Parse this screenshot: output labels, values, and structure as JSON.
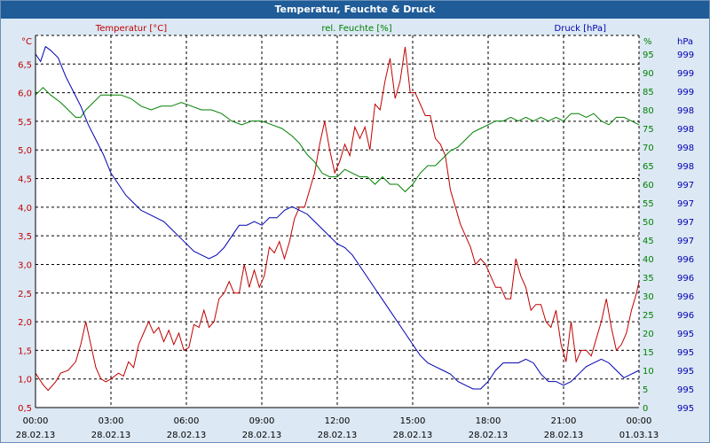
{
  "window": {
    "title": "Temperatur, Feuchte & Druck"
  },
  "colors": {
    "temperature": "#c00000",
    "humidity": "#008000",
    "pressure": "#0000b0",
    "grid": "#000000",
    "titlebar": "#1f5c98"
  },
  "chart_data": {
    "type": "line",
    "title": "Temperatur, Feuchte & Druck",
    "x_unit": "hours since 28.02.13 00:00",
    "xlim": [
      0,
      24
    ],
    "x_ticks": [
      {
        "x": 0,
        "time": "00:00",
        "date": "28.02.13"
      },
      {
        "x": 3,
        "time": "03:00",
        "date": "28.02.13"
      },
      {
        "x": 6,
        "time": "06:00",
        "date": "28.02.13"
      },
      {
        "x": 9,
        "time": "09:00",
        "date": "28.02.13"
      },
      {
        "x": 12,
        "time": "12:00",
        "date": "28.02.13"
      },
      {
        "x": 15,
        "time": "15:00",
        "date": "28.02.13"
      },
      {
        "x": 18,
        "time": "18:00",
        "date": "28.02.13"
      },
      {
        "x": 21,
        "time": "21:00",
        "date": "28.02.13"
      },
      {
        "x": 24,
        "time": "00:00",
        "date": "01.03.13"
      }
    ],
    "axes": {
      "temperature": {
        "label": "Temperatur [°C]",
        "unit": "°C",
        "ylim": [
          0.5,
          7.0
        ],
        "ticks": [
          "0,5",
          "1,0",
          "1,5",
          "2,0",
          "2,5",
          "3,0",
          "3,5",
          "4,0",
          "4,5",
          "5,0",
          "5,5",
          "6,0",
          "6,5"
        ]
      },
      "humidity": {
        "label": "rel. Feuchte [%]",
        "unit": "%",
        "ylim": [
          0,
          100
        ],
        "ticks": [
          "0",
          "5",
          "10",
          "15",
          "20",
          "25",
          "30",
          "35",
          "40",
          "45",
          "50",
          "55",
          "60",
          "65",
          "70",
          "75",
          "80",
          "85",
          "90",
          "95"
        ]
      },
      "pressure": {
        "label": "Druck [hPa]",
        "unit": "hPa",
        "ticks": [
          "995",
          "995",
          "995",
          "995",
          "995",
          "996",
          "996",
          "996",
          "996",
          "997",
          "997",
          "997",
          "997",
          "998",
          "998",
          "998",
          "998",
          "999",
          "999",
          "999"
        ]
      }
    },
    "series": [
      {
        "name": "Temperatur",
        "axis": "temperature",
        "points": [
          [
            0,
            1.1
          ],
          [
            0.3,
            0.9
          ],
          [
            0.5,
            0.8
          ],
          [
            0.8,
            0.95
          ],
          [
            1,
            1.1
          ],
          [
            1.3,
            1.15
          ],
          [
            1.6,
            1.3
          ],
          [
            1.8,
            1.6
          ],
          [
            2,
            2.0
          ],
          [
            2.2,
            1.6
          ],
          [
            2.4,
            1.2
          ],
          [
            2.6,
            1.0
          ],
          [
            2.8,
            0.95
          ],
          [
            3,
            1.0
          ],
          [
            3.3,
            1.1
          ],
          [
            3.5,
            1.05
          ],
          [
            3.7,
            1.3
          ],
          [
            3.9,
            1.2
          ],
          [
            4.1,
            1.6
          ],
          [
            4.3,
            1.8
          ],
          [
            4.5,
            2.0
          ],
          [
            4.7,
            1.8
          ],
          [
            4.9,
            1.9
          ],
          [
            5.1,
            1.65
          ],
          [
            5.3,
            1.85
          ],
          [
            5.5,
            1.6
          ],
          [
            5.7,
            1.8
          ],
          [
            5.9,
            1.5
          ],
          [
            6.1,
            1.55
          ],
          [
            6.3,
            1.95
          ],
          [
            6.5,
            1.9
          ],
          [
            6.7,
            2.2
          ],
          [
            6.9,
            1.9
          ],
          [
            7.1,
            2.0
          ],
          [
            7.3,
            2.4
          ],
          [
            7.5,
            2.5
          ],
          [
            7.7,
            2.7
          ],
          [
            7.9,
            2.5
          ],
          [
            8.1,
            2.5
          ],
          [
            8.3,
            3.0
          ],
          [
            8.5,
            2.6
          ],
          [
            8.7,
            2.9
          ],
          [
            8.9,
            2.6
          ],
          [
            9.1,
            2.8
          ],
          [
            9.3,
            3.3
          ],
          [
            9.5,
            3.2
          ],
          [
            9.7,
            3.4
          ],
          [
            9.9,
            3.1
          ],
          [
            10.1,
            3.4
          ],
          [
            10.3,
            3.8
          ],
          [
            10.5,
            4.0
          ],
          [
            10.7,
            4.0
          ],
          [
            10.9,
            4.3
          ],
          [
            11.1,
            4.6
          ],
          [
            11.3,
            5.1
          ],
          [
            11.5,
            5.5
          ],
          [
            11.7,
            5.0
          ],
          [
            11.9,
            4.6
          ],
          [
            12.1,
            4.8
          ],
          [
            12.3,
            5.1
          ],
          [
            12.5,
            4.9
          ],
          [
            12.7,
            5.4
          ],
          [
            12.9,
            5.2
          ],
          [
            13.1,
            5.4
          ],
          [
            13.3,
            5.0
          ],
          [
            13.5,
            5.8
          ],
          [
            13.7,
            5.7
          ],
          [
            13.9,
            6.2
          ],
          [
            14.1,
            6.6
          ],
          [
            14.3,
            5.9
          ],
          [
            14.5,
            6.2
          ],
          [
            14.7,
            6.8
          ],
          [
            14.9,
            6.0
          ],
          [
            15.1,
            6.0
          ],
          [
            15.3,
            5.8
          ],
          [
            15.5,
            5.6
          ],
          [
            15.7,
            5.6
          ],
          [
            15.9,
            5.2
          ],
          [
            16.1,
            5.1
          ],
          [
            16.3,
            4.9
          ],
          [
            16.5,
            4.3
          ],
          [
            16.7,
            4.0
          ],
          [
            16.9,
            3.7
          ],
          [
            17.1,
            3.5
          ],
          [
            17.3,
            3.3
          ],
          [
            17.5,
            3.0
          ],
          [
            17.7,
            3.1
          ],
          [
            17.9,
            3.0
          ],
          [
            18.1,
            2.8
          ],
          [
            18.3,
            2.6
          ],
          [
            18.5,
            2.6
          ],
          [
            18.7,
            2.4
          ],
          [
            18.9,
            2.4
          ],
          [
            19.1,
            3.1
          ],
          [
            19.3,
            2.8
          ],
          [
            19.5,
            2.6
          ],
          [
            19.7,
            2.2
          ],
          [
            19.9,
            2.3
          ],
          [
            20.1,
            2.3
          ],
          [
            20.3,
            2.0
          ],
          [
            20.5,
            1.9
          ],
          [
            20.7,
            2.2
          ],
          [
            20.9,
            1.6
          ],
          [
            21.1,
            1.3
          ],
          [
            21.3,
            2.0
          ],
          [
            21.5,
            1.3
          ],
          [
            21.7,
            1.5
          ],
          [
            21.9,
            1.5
          ],
          [
            22.1,
            1.4
          ],
          [
            22.3,
            1.7
          ],
          [
            22.5,
            2.0
          ],
          [
            22.7,
            2.4
          ],
          [
            22.9,
            1.9
          ],
          [
            23.1,
            1.5
          ],
          [
            23.3,
            1.6
          ],
          [
            23.5,
            1.8
          ],
          [
            23.7,
            2.2
          ],
          [
            23.9,
            2.5
          ],
          [
            24,
            2.7
          ]
        ]
      },
      {
        "name": "rel. Feuchte",
        "axis": "humidity",
        "points": [
          [
            0,
            84
          ],
          [
            0.3,
            86
          ],
          [
            0.6,
            84
          ],
          [
            1,
            82
          ],
          [
            1.3,
            80
          ],
          [
            1.6,
            78
          ],
          [
            1.8,
            78
          ],
          [
            2,
            80
          ],
          [
            2.3,
            82
          ],
          [
            2.6,
            84
          ],
          [
            3,
            84
          ],
          [
            3.4,
            84
          ],
          [
            3.8,
            83
          ],
          [
            4.2,
            81
          ],
          [
            4.6,
            80
          ],
          [
            5,
            81
          ],
          [
            5.4,
            81
          ],
          [
            5.8,
            82
          ],
          [
            6.2,
            81
          ],
          [
            6.6,
            80
          ],
          [
            7,
            80
          ],
          [
            7.4,
            79
          ],
          [
            7.8,
            77
          ],
          [
            8.2,
            76
          ],
          [
            8.6,
            77
          ],
          [
            9,
            77
          ],
          [
            9.4,
            76
          ],
          [
            9.8,
            75
          ],
          [
            10.2,
            73
          ],
          [
            10.5,
            71
          ],
          [
            10.8,
            68
          ],
          [
            11.1,
            66
          ],
          [
            11.4,
            63
          ],
          [
            11.7,
            62
          ],
          [
            12,
            62
          ],
          [
            12.3,
            64
          ],
          [
            12.6,
            63
          ],
          [
            12.9,
            62
          ],
          [
            13.2,
            62
          ],
          [
            13.5,
            60
          ],
          [
            13.8,
            62
          ],
          [
            14.1,
            60
          ],
          [
            14.4,
            60
          ],
          [
            14.7,
            58
          ],
          [
            15,
            60
          ],
          [
            15.3,
            63
          ],
          [
            15.6,
            65
          ],
          [
            15.9,
            65
          ],
          [
            16.2,
            67
          ],
          [
            16.5,
            69
          ],
          [
            16.8,
            70
          ],
          [
            17.1,
            72
          ],
          [
            17.4,
            74
          ],
          [
            17.7,
            75
          ],
          [
            18,
            76
          ],
          [
            18.3,
            77
          ],
          [
            18.6,
            77
          ],
          [
            18.9,
            78
          ],
          [
            19.2,
            77
          ],
          [
            19.5,
            78
          ],
          [
            19.8,
            77
          ],
          [
            20.1,
            78
          ],
          [
            20.4,
            77
          ],
          [
            20.7,
            78
          ],
          [
            21,
            77
          ],
          [
            21.3,
            79
          ],
          [
            21.6,
            79
          ],
          [
            21.9,
            78
          ],
          [
            22.2,
            79
          ],
          [
            22.5,
            77
          ],
          [
            22.8,
            76
          ],
          [
            23.1,
            78
          ],
          [
            23.4,
            78
          ],
          [
            23.7,
            77
          ],
          [
            24,
            76
          ]
        ]
      },
      {
        "name": "Druck",
        "axis": "pressure",
        "scale": "right-axis position (0–100)",
        "points": [
          [
            0,
            95
          ],
          [
            0.2,
            93
          ],
          [
            0.4,
            97
          ],
          [
            0.6,
            96
          ],
          [
            0.9,
            94
          ],
          [
            1.2,
            89
          ],
          [
            1.5,
            85
          ],
          [
            1.8,
            81
          ],
          [
            2.1,
            76
          ],
          [
            2.4,
            72
          ],
          [
            2.7,
            68
          ],
          [
            3,
            63
          ],
          [
            3.3,
            60
          ],
          [
            3.6,
            57
          ],
          [
            3.9,
            55
          ],
          [
            4.2,
            53
          ],
          [
            4.5,
            52
          ],
          [
            4.8,
            51
          ],
          [
            5.1,
            50
          ],
          [
            5.4,
            48
          ],
          [
            5.7,
            46
          ],
          [
            6,
            44
          ],
          [
            6.3,
            42
          ],
          [
            6.6,
            41
          ],
          [
            6.9,
            40
          ],
          [
            7.2,
            41
          ],
          [
            7.5,
            43
          ],
          [
            7.8,
            46
          ],
          [
            8.1,
            49
          ],
          [
            8.4,
            49
          ],
          [
            8.7,
            50
          ],
          [
            9,
            49
          ],
          [
            9.3,
            51
          ],
          [
            9.6,
            51
          ],
          [
            9.9,
            53
          ],
          [
            10.2,
            54
          ],
          [
            10.5,
            53
          ],
          [
            10.8,
            52
          ],
          [
            11.1,
            50
          ],
          [
            11.4,
            48
          ],
          [
            11.7,
            46
          ],
          [
            12,
            44
          ],
          [
            12.3,
            43
          ],
          [
            12.6,
            41
          ],
          [
            12.9,
            38
          ],
          [
            13.2,
            35
          ],
          [
            13.5,
            32
          ],
          [
            13.8,
            29
          ],
          [
            14.1,
            26
          ],
          [
            14.4,
            23
          ],
          [
            14.7,
            20
          ],
          [
            15,
            17
          ],
          [
            15.3,
            14
          ],
          [
            15.6,
            12
          ],
          [
            15.9,
            11
          ],
          [
            16.2,
            10
          ],
          [
            16.5,
            9
          ],
          [
            16.8,
            7
          ],
          [
            17.1,
            6
          ],
          [
            17.4,
            5
          ],
          [
            17.7,
            5
          ],
          [
            18,
            7
          ],
          [
            18.3,
            10
          ],
          [
            18.6,
            12
          ],
          [
            18.9,
            12
          ],
          [
            19.2,
            12
          ],
          [
            19.5,
            13
          ],
          [
            19.8,
            12
          ],
          [
            20.1,
            9
          ],
          [
            20.4,
            7
          ],
          [
            20.7,
            7
          ],
          [
            21,
            6
          ],
          [
            21.3,
            7
          ],
          [
            21.6,
            9
          ],
          [
            21.9,
            11
          ],
          [
            22.2,
            12
          ],
          [
            22.5,
            13
          ],
          [
            22.8,
            12
          ],
          [
            23.1,
            10
          ],
          [
            23.4,
            8
          ],
          [
            23.7,
            9
          ],
          [
            24,
            10
          ]
        ]
      }
    ]
  }
}
